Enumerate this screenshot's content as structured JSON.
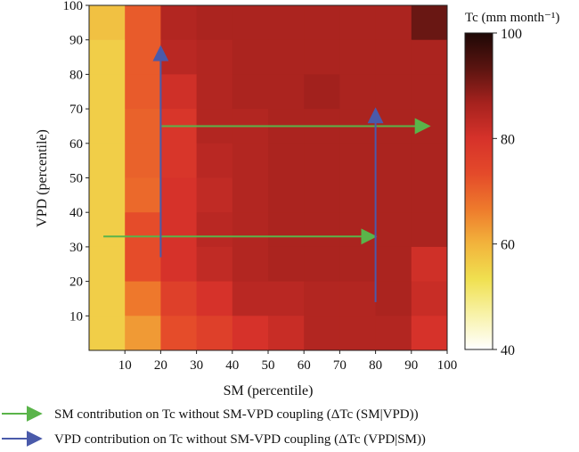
{
  "chart_data": {
    "type": "heatmap",
    "x": {
      "label": "SM (percentile)",
      "ticks": [
        10,
        20,
        30,
        40,
        50,
        60,
        70,
        80,
        90,
        100
      ],
      "range": [
        0,
        100
      ],
      "bin_width": 10
    },
    "y": {
      "label": "VPD (percentile)",
      "ticks": [
        10,
        20,
        30,
        40,
        50,
        60,
        70,
        80,
        90,
        100
      ],
      "range": [
        0,
        100
      ],
      "bin_height": 10
    },
    "colorbar": {
      "title": "Tc (mm month⁻¹)",
      "ticks": [
        40,
        60,
        80,
        100
      ],
      "range": [
        40,
        100
      ],
      "colors": [
        "#ffffff",
        "#f8f2a8",
        "#f0e050",
        "#f2b43c",
        "#ee7a2c",
        "#e44a2a",
        "#d6322a",
        "#a6221e",
        "#5a1410",
        "#1e0806"
      ]
    },
    "rows_note": "row 0 = VPD 90-100 (top) ... row 9 = VPD 0-10 (bottom); columns SM 0-10 ... 90-100",
    "z": [
      [
        58,
        71,
        85,
        86,
        86,
        86,
        86,
        86,
        86,
        92
      ],
      [
        56,
        71,
        84,
        85,
        86,
        86,
        86,
        86,
        86,
        86
      ],
      [
        56,
        71,
        81,
        85,
        86,
        86,
        87,
        86,
        86,
        86
      ],
      [
        56,
        70,
        79,
        85,
        85,
        86,
        86,
        86,
        86,
        86
      ],
      [
        56,
        70,
        79,
        84,
        85,
        86,
        86,
        86,
        86,
        86
      ],
      [
        56,
        69,
        80,
        83,
        85,
        86,
        86,
        86,
        86,
        86
      ],
      [
        56,
        73,
        80,
        84,
        85,
        86,
        86,
        86,
        86,
        86
      ],
      [
        56,
        73,
        80,
        83,
        85,
        86,
        86,
        86,
        86,
        81
      ],
      [
        56,
        67,
        76,
        80,
        84,
        84,
        85,
        85,
        86,
        82
      ],
      [
        56,
        63,
        73,
        76,
        80,
        82,
        85,
        85,
        85,
        80
      ]
    ],
    "arrows": [
      {
        "kind": "SM",
        "from": [
          4,
          33
        ],
        "to": [
          80,
          33
        ]
      },
      {
        "kind": "SM",
        "from": [
          20,
          65
        ],
        "to": [
          95,
          65
        ]
      },
      {
        "kind": "VPD",
        "from": [
          20,
          27
        ],
        "to": [
          20,
          88
        ]
      },
      {
        "kind": "VPD",
        "from": [
          80,
          14
        ],
        "to": [
          80,
          70
        ]
      }
    ],
    "legend": [
      {
        "kind": "SM",
        "color": "#5ab44a",
        "text": "SM contribution on Tc without SM-VPD coupling (ΔTc (SM|VPD))"
      },
      {
        "kind": "VPD",
        "color": "#4a5aaa",
        "text": "VPD contribution on Tc without SM-VPD coupling (ΔTc (VPD|SM))"
      }
    ]
  }
}
